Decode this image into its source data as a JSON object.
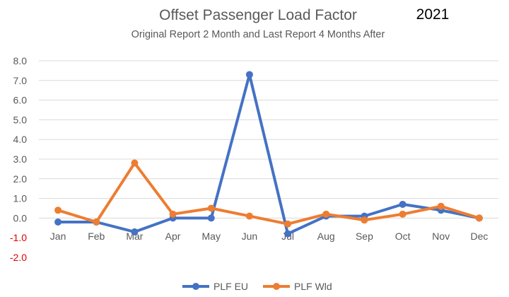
{
  "chart_data": {
    "type": "line",
    "title": "Offset Passenger Load Factor",
    "year_label": "2021",
    "subtitle": "Original Report 2 Month and Last Report 4 Months After",
    "categories": [
      "Jan",
      "Feb",
      "Mar",
      "Apr",
      "May",
      "Jun",
      "Jul",
      "Aug",
      "Sep",
      "Oct",
      "Nov",
      "Dec"
    ],
    "series": [
      {
        "name": "PLF EU",
        "color": "#4472c4",
        "values": [
          -0.2,
          -0.2,
          -0.7,
          0.0,
          0.0,
          7.3,
          -0.8,
          0.1,
          0.1,
          0.7,
          0.4,
          0.0
        ]
      },
      {
        "name": "PLF Wld",
        "color": "#ed7d31",
        "values": [
          0.4,
          -0.2,
          2.8,
          0.2,
          0.5,
          0.1,
          -0.3,
          0.2,
          -0.1,
          0.2,
          0.6,
          0.0
        ]
      }
    ],
    "ylim": [
      -2.0,
      8.0
    ],
    "yticks": [
      "8.0",
      "7.0",
      "6.0",
      "5.0",
      "4.0",
      "3.0",
      "2.0",
      "1.0",
      "0.0",
      "-1.0",
      "-2.0"
    ],
    "negative_tick_color": "#e00000",
    "grid": true,
    "legend_position": "bottom"
  }
}
